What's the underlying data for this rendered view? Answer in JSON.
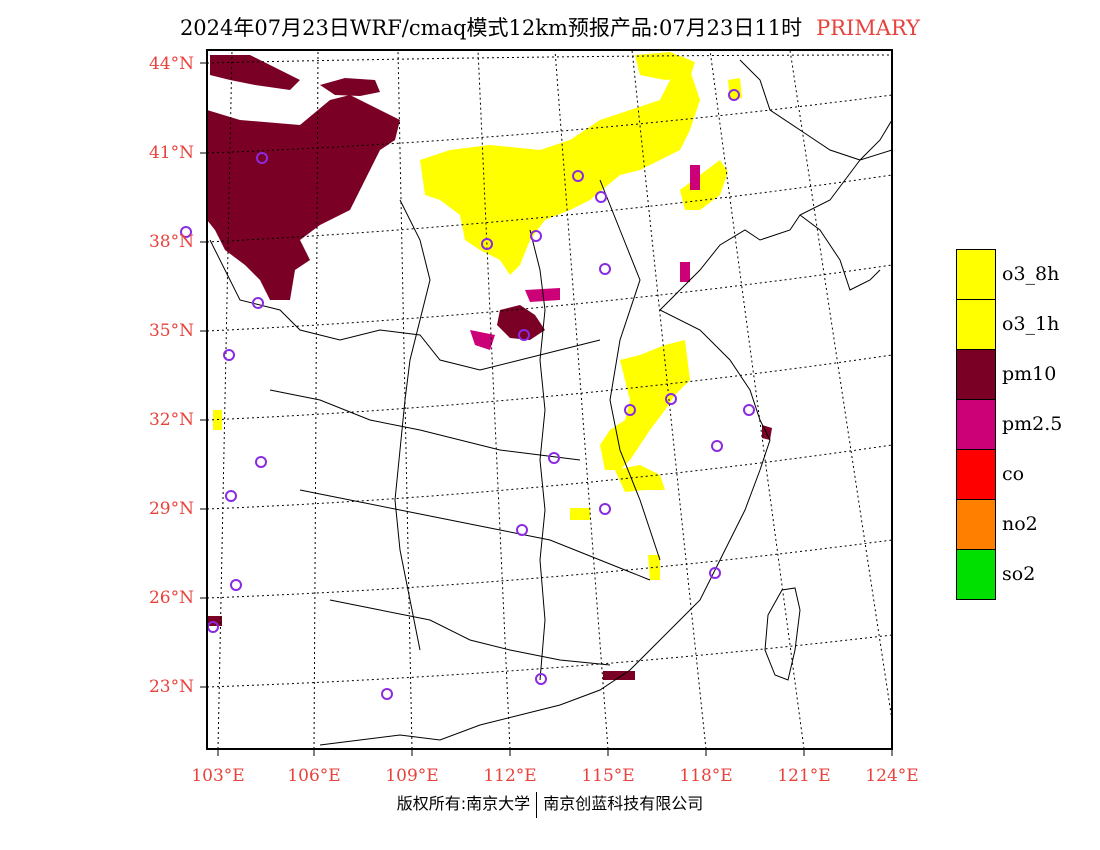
{
  "title": {
    "main": "2024年07月23日WRF/cmaq模式12km预报产品:07月23日11时",
    "tag": "PRIMARY"
  },
  "axes": {
    "lat_labels": [
      "44°N",
      "41°N",
      "38°N",
      "35°N",
      "32°N",
      "29°N",
      "26°N",
      "23°N"
    ],
    "lon_labels": [
      "103°E",
      "106°E",
      "109°E",
      "112°E",
      "115°E",
      "118°E",
      "121°E",
      "124°E"
    ]
  },
  "legend": [
    {
      "label": "o3_8h",
      "color": "#ffff00"
    },
    {
      "label": "o3_1h",
      "color": "#ffff00"
    },
    {
      "label": "pm10",
      "color": "#7a0026"
    },
    {
      "label": "pm2.5",
      "color": "#cc0077"
    },
    {
      "label": "co",
      "color": "#ff0000"
    },
    {
      "label": "no2",
      "color": "#ff8000"
    },
    {
      "label": "so2",
      "color": "#00e000"
    }
  ],
  "footer": {
    "left": "版权所有:南京大学",
    "right": "南京创蓝科技有限公司"
  },
  "colors": {
    "o3": "#ffff00",
    "pm10": "#7a0026",
    "pm25": "#cc0077",
    "no2": "#ff8000",
    "station": "#8a2be2",
    "axis_label": "#e8423c"
  }
}
